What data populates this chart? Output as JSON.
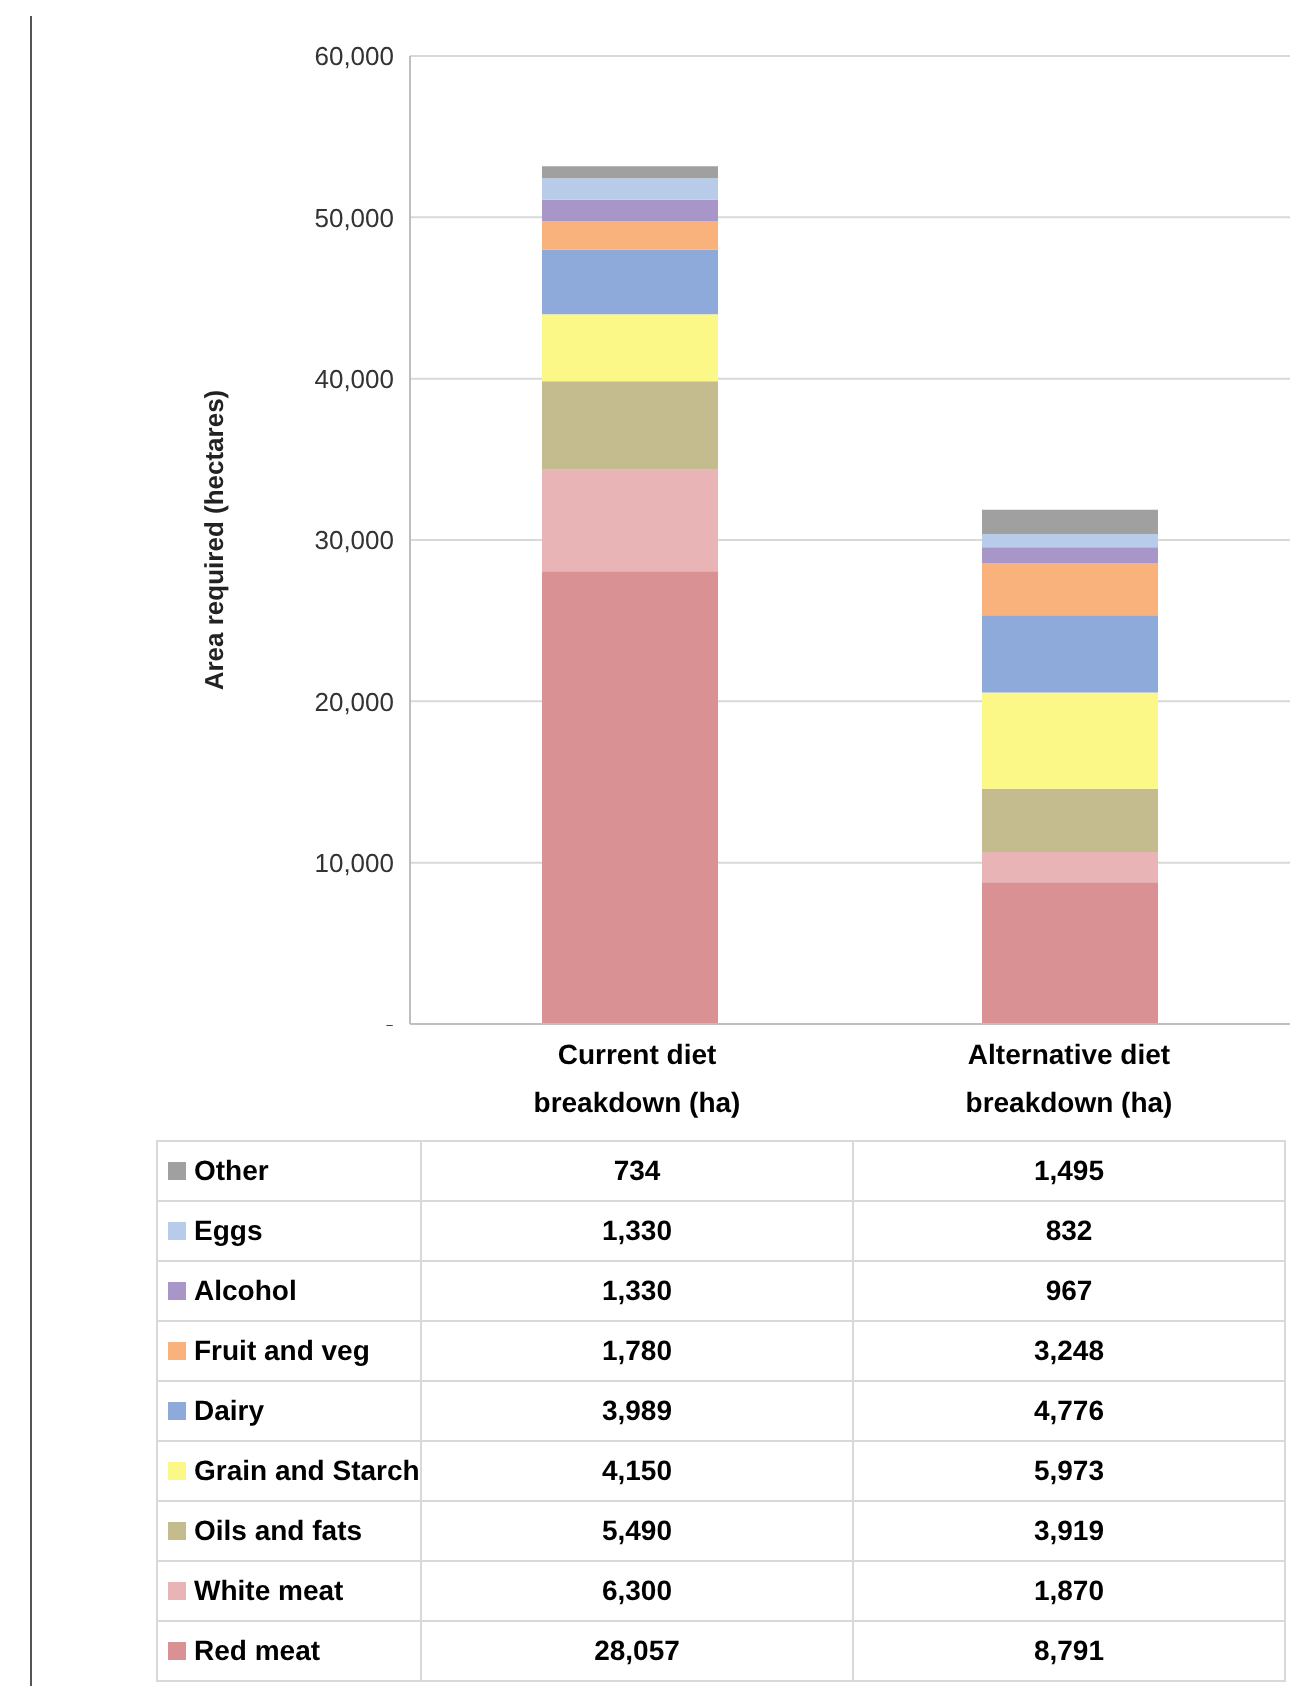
{
  "chart_data": {
    "type": "bar",
    "stacked": true,
    "ylabel": "Area required (hectares)",
    "categories": [
      "Current diet breakdown (ha)",
      "Alternative diet breakdown (ha)"
    ],
    "series": [
      {
        "name": "Red meat",
        "color": "#d99194",
        "values": [
          28057,
          8791
        ],
        "value_labels": [
          "28,057",
          "8,791"
        ]
      },
      {
        "name": "White meat",
        "color": "#e8b4b6",
        "values": [
          6300,
          1870
        ],
        "value_labels": [
          "6,300",
          "1,870"
        ]
      },
      {
        "name": "Oils and fats",
        "color": "#c4bb8f",
        "values": [
          5490,
          3919
        ],
        "value_labels": [
          "5,490",
          "3,919"
        ]
      },
      {
        "name": "Grain and Starch",
        "color": "#fcf888",
        "values": [
          4150,
          5973
        ],
        "value_labels": [
          "4,150",
          "5,973"
        ]
      },
      {
        "name": "Dairy",
        "color": "#8eaadb",
        "values": [
          3989,
          4776
        ],
        "value_labels": [
          "3,989",
          "4,776"
        ]
      },
      {
        "name": "Fruit and veg",
        "color": "#f9b27c",
        "values": [
          1780,
          3248
        ],
        "value_labels": [
          "1,780",
          "3,248"
        ]
      },
      {
        "name": "Alcohol",
        "color": "#a996c9",
        "values": [
          1330,
          967
        ],
        "value_labels": [
          "1,330",
          "967"
        ]
      },
      {
        "name": "Eggs",
        "color": "#b8cbe9",
        "values": [
          1330,
          832
        ],
        "value_labels": [
          "1,330",
          "832"
        ]
      },
      {
        "name": "Other",
        "color": "#a0a0a0",
        "values": [
          734,
          1495
        ],
        "value_labels": [
          "734",
          "1,495"
        ]
      }
    ],
    "ylim": [
      0,
      60000
    ],
    "yticks": [
      {
        "value": 0,
        "label": "-"
      },
      {
        "value": 10000,
        "label": "10,000"
      },
      {
        "value": 20000,
        "label": "20,000"
      },
      {
        "value": 30000,
        "label": "30,000"
      },
      {
        "value": 40000,
        "label": "40,000"
      },
      {
        "value": 50000,
        "label": "50,000"
      },
      {
        "value": 60000,
        "label": "60,000"
      }
    ],
    "grid": "y",
    "legend": "bottom"
  }
}
